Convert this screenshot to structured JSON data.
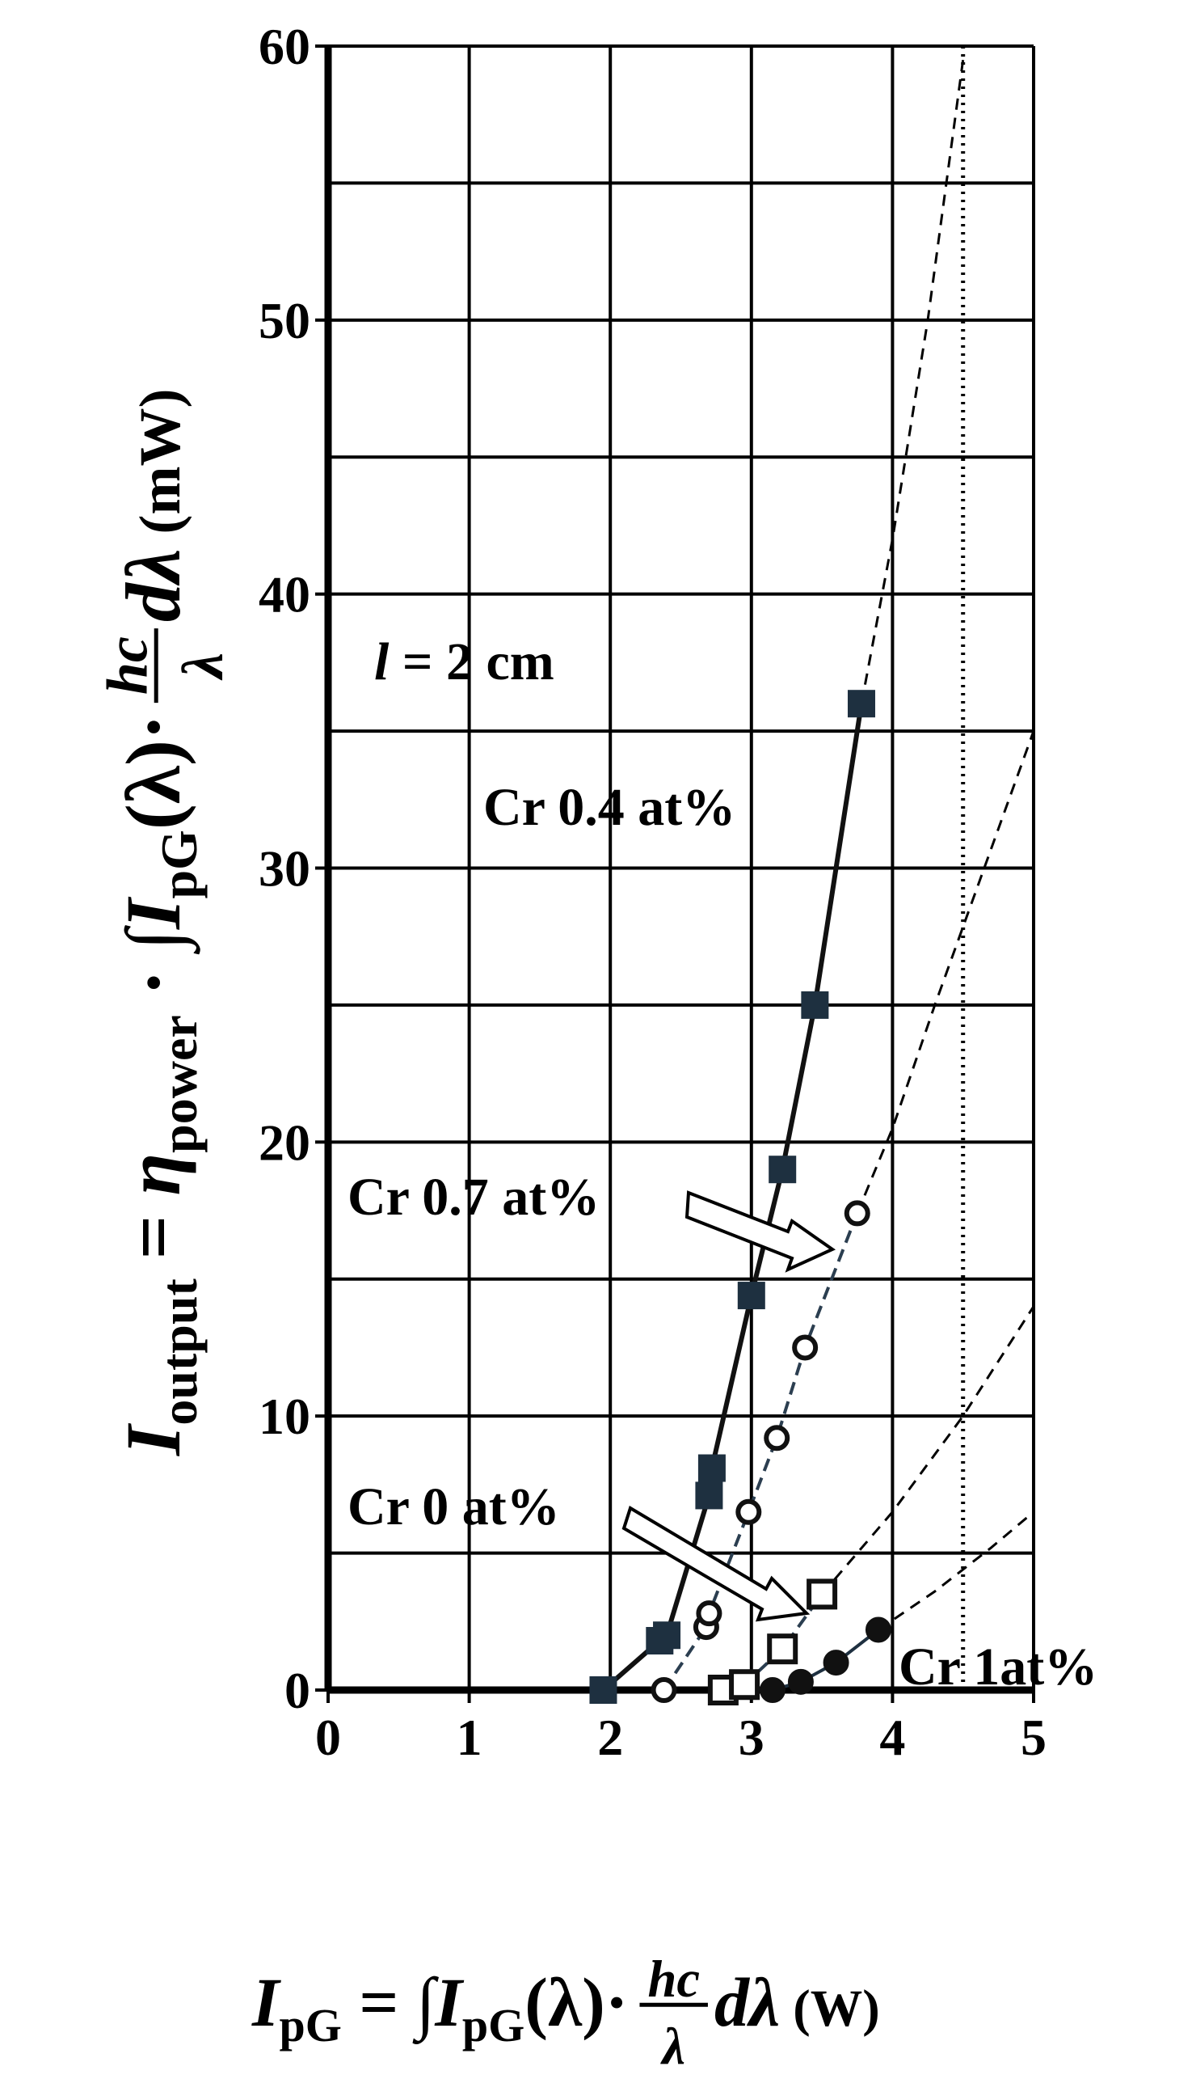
{
  "chart_data": {
    "type": "scatter",
    "xlim": [
      0,
      5
    ],
    "xticks": [
      0,
      1,
      2,
      3,
      4,
      5
    ],
    "ylim": [
      0,
      60
    ],
    "yticks": [
      0,
      10,
      20,
      30,
      40,
      50,
      60
    ],
    "yminor": [
      5,
      15,
      25,
      35,
      45,
      55
    ],
    "grid": true,
    "vline": 4.5,
    "length_label": [
      "l",
      " = 2 cm"
    ],
    "y_label": {
      "before": [
        "I",
        "output",
        " = ",
        "η",
        "power",
        " · ∫",
        "I",
        "pG",
        "(λ)·"
      ],
      "numerator": "hc",
      "denominator": "λ",
      "after": [
        " dλ",
        "  (mW)"
      ]
    },
    "x_label": {
      "before": [
        "I",
        "pG",
        " = ∫",
        "I",
        "pG",
        "(λ)·"
      ],
      "numerator": "hc",
      "denominator": "λ",
      "after": [
        " dλ",
        "  (W)"
      ]
    },
    "series": [
      {
        "name": "Cr 0.4 at%",
        "color": "#111111",
        "marker_color": "#1e3040",
        "marker": "square",
        "filled": true,
        "line": "solid",
        "x": [
          1.95,
          2.35,
          2.4,
          2.7,
          2.72,
          3.0,
          3.22,
          3.45,
          3.78
        ],
        "values": [
          0,
          1.8,
          2.0,
          7.1,
          8.1,
          14.4,
          19.0,
          25.0,
          36.0
        ],
        "fit_x": [
          3.78,
          4.0,
          4.25,
          4.5
        ],
        "fit_y": [
          36.0,
          42.0,
          50.0,
          59.5
        ]
      },
      {
        "name": "Cr 0.7 at%",
        "color": "#2b3e50",
        "marker_color": "#111111",
        "marker": "circle",
        "filled": false,
        "line": "dashed",
        "x": [
          2.38,
          2.68,
          2.7,
          2.98,
          3.18,
          3.38,
          3.75
        ],
        "values": [
          0,
          2.3,
          2.8,
          6.5,
          9.2,
          12.5,
          17.4
        ],
        "fit_x": [
          3.75,
          4.0,
          4.3,
          4.65,
          5.0
        ],
        "fit_y": [
          17.4,
          20.5,
          25.0,
          30.0,
          35.0
        ]
      },
      {
        "name": "Cr 0 at%",
        "color": "#2b3e50",
        "marker_color": "#111111",
        "marker": "square",
        "filled": false,
        "line": "dashed",
        "x": [
          2.8,
          2.95,
          3.22,
          3.5
        ],
        "values": [
          0,
          0.2,
          1.5,
          3.5
        ],
        "fit_x": [
          3.5,
          4.0,
          4.5,
          5.0
        ],
        "fit_y": [
          3.5,
          6.5,
          10.0,
          14.0
        ]
      },
      {
        "name": "Cr 1at%",
        "color": "#1e3040",
        "marker_color": "#111111",
        "marker": "circle",
        "filled": true,
        "line": "solid",
        "x": [
          3.15,
          3.35,
          3.6,
          3.9
        ],
        "values": [
          0,
          0.3,
          1.0,
          2.2
        ],
        "fit_x": [
          3.9,
          4.3,
          4.7,
          5.0
        ],
        "fit_y": [
          2.2,
          3.6,
          5.2,
          6.5
        ]
      }
    ]
  }
}
